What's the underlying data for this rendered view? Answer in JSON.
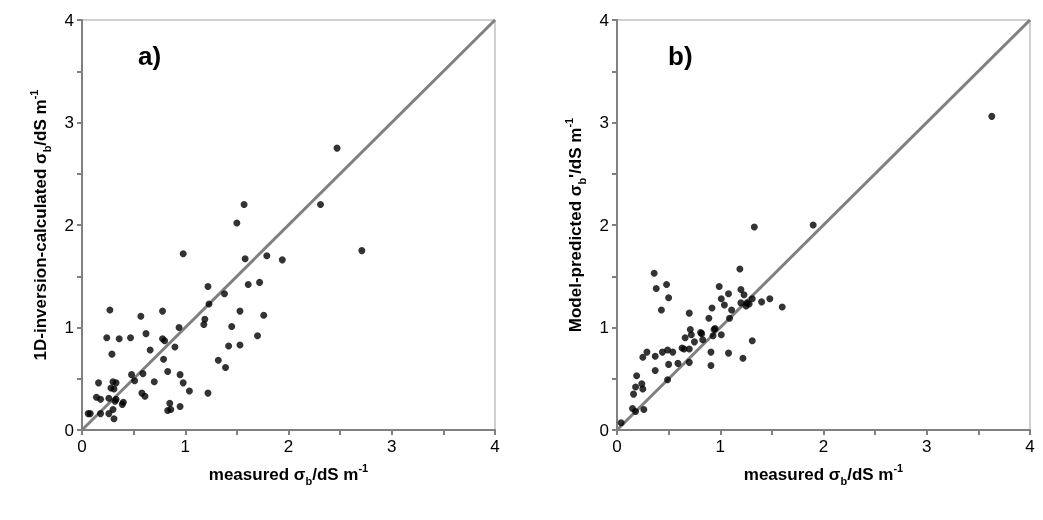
{
  "chart_data": [
    {
      "type": "scatter",
      "xlabel": "measured σ$_{b}$/dS m$^{-1}$",
      "ylabel": "1D-inversion-calculated σ$_{b}$/dS m$^{-1}$",
      "annotations": [
        "a)"
      ],
      "xlim": [
        0,
        4
      ],
      "ylim": [
        0,
        4
      ],
      "xticks": [
        0,
        {
          "value": 0.5,
          "label": null
        },
        1,
        {
          "value": 1.5,
          "label": null
        },
        2,
        {
          "value": 2.5,
          "label": null
        },
        3,
        {
          "value": 3.5,
          "label": null
        },
        4
      ],
      "yticks": [
        0,
        {
          "value": 0.5,
          "label": null
        },
        1,
        {
          "value": 1.5,
          "label": null
        },
        2,
        {
          "value": 2.5,
          "label": null
        },
        3,
        {
          "value": 3.5,
          "label": null
        },
        4
      ],
      "series": [
        {
          "color": "#000000",
          "marker": "circle",
          "x": [
            0.98,
            1.58,
            1.79,
            0.27,
            1.22,
            1.61,
            1.72,
            1.38,
            1.23,
            1.53,
            1.76,
            0.78,
            0.57,
            1.19,
            1.18,
            0.94,
            1.45,
            0.24,
            0.36,
            0.47,
            0.62,
            0.78,
            0.8,
            1.7,
            1.42,
            1.53,
            0.9,
            0.66,
            0.29,
            0.79,
            1.32,
            1.39,
            0.83,
            0.48,
            0.59,
            0.95,
            0.98,
            0.51,
            0.7,
            1.04,
            1.22,
            0.16,
            0.28,
            0.3,
            0.33,
            0.31,
            0.58,
            0.61,
            0.14,
            0.18,
            0.26,
            0.32,
            0.33,
            0.4,
            0.39,
            0.85,
            0.86,
            0.83,
            0.95,
            0.06,
            0.08,
            0.18,
            0.26,
            0.3,
            0.31,
            2.47,
            1.57,
            1.5,
            2.31,
            2.71,
            1.94
          ],
          "values": [
            1.72,
            1.67,
            1.7,
            1.17,
            1.4,
            1.42,
            1.44,
            1.33,
            1.23,
            1.16,
            1.12,
            1.16,
            1.11,
            1.08,
            1.03,
            1.0,
            1.01,
            0.9,
            0.89,
            0.9,
            0.94,
            0.89,
            0.87,
            0.92,
            0.82,
            0.83,
            0.81,
            0.78,
            0.74,
            0.69,
            0.68,
            0.61,
            0.57,
            0.54,
            0.55,
            0.54,
            0.46,
            0.48,
            0.47,
            0.38,
            0.36,
            0.46,
            0.41,
            0.47,
            0.46,
            0.4,
            0.36,
            0.33,
            0.32,
            0.3,
            0.31,
            0.28,
            0.3,
            0.27,
            0.25,
            0.26,
            0.2,
            0.19,
            0.23,
            0.16,
            0.16,
            0.16,
            0.16,
            0.2,
            0.11,
            2.75,
            2.2,
            2.02,
            2.2,
            1.75,
            1.66
          ]
        },
        {
          "type": "line",
          "color": "#808080",
          "x": [
            0,
            4
          ],
          "values": [
            0,
            4
          ]
        }
      ]
    },
    {
      "type": "scatter",
      "xlabel": "measured σ$_{b}$/dS m$^{-1}$",
      "ylabel": "Model-predicted σ$_{b}$'/dS m$^{-1}$",
      "annotations": [
        "b)"
      ],
      "xlim": [
        0,
        4
      ],
      "ylim": [
        0,
        4
      ],
      "xticks": [
        0,
        {
          "value": 0.5,
          "label": null
        },
        1,
        {
          "value": 1.5,
          "label": null
        },
        2,
        {
          "value": 2.5,
          "label": null
        },
        3,
        {
          "value": 3.5,
          "label": null
        },
        4
      ],
      "yticks": [
        0,
        {
          "value": 0.5,
          "label": null
        },
        1,
        {
          "value": 1.5,
          "label": null
        },
        2,
        {
          "value": 2.5,
          "label": null
        },
        3,
        {
          "value": 3.5,
          "label": null
        },
        4
      ],
      "series": [
        {
          "color": "#000000",
          "marker": "circle",
          "x": [
            0.36,
            0.38,
            0.48,
            0.5,
            0.43,
            1.19,
            0.99,
            1.2,
            1.08,
            1.23,
            1.01,
            1.31,
            1.48,
            1.4,
            1.2,
            1.26,
            1.25,
            1.28,
            1.6,
            1.04,
            1.11,
            0.92,
            0.7,
            0.89,
            1.09,
            0.71,
            0.94,
            0.95,
            0.81,
            0.82,
            0.66,
            0.72,
            0.93,
            0.75,
            0.83,
            1.01,
            1.31,
            0.63,
            0.65,
            0.7,
            0.29,
            0.44,
            0.49,
            0.54,
            0.25,
            0.37,
            0.91,
            1.08,
            1.22,
            0.5,
            0.59,
            0.7,
            0.91,
            0.37,
            0.19,
            0.49,
            0.24,
            0.18,
            0.25,
            0.16,
            0.15,
            0.18,
            0.26,
            0.04,
            1.9,
            1.33,
            3.63
          ],
          "values": [
            1.53,
            1.38,
            1.42,
            1.29,
            1.17,
            1.57,
            1.4,
            1.37,
            1.33,
            1.32,
            1.28,
            1.28,
            1.28,
            1.25,
            1.24,
            1.24,
            1.21,
            1.23,
            1.2,
            1.22,
            1.17,
            1.19,
            1.14,
            1.09,
            1.09,
            0.98,
            0.98,
            0.99,
            0.95,
            0.94,
            0.9,
            0.93,
            0.92,
            0.86,
            0.88,
            0.93,
            0.87,
            0.8,
            0.79,
            0.79,
            0.76,
            0.76,
            0.78,
            0.76,
            0.71,
            0.72,
            0.76,
            0.75,
            0.7,
            0.64,
            0.65,
            0.66,
            0.63,
            0.58,
            0.53,
            0.49,
            0.45,
            0.42,
            0.4,
            0.35,
            0.21,
            0.18,
            0.2,
            0.07,
            2.0,
            1.98,
            3.06
          ]
        },
        {
          "type": "line",
          "color": "#808080",
          "x": [
            0,
            4
          ],
          "values": [
            0,
            4
          ]
        }
      ]
    }
  ]
}
